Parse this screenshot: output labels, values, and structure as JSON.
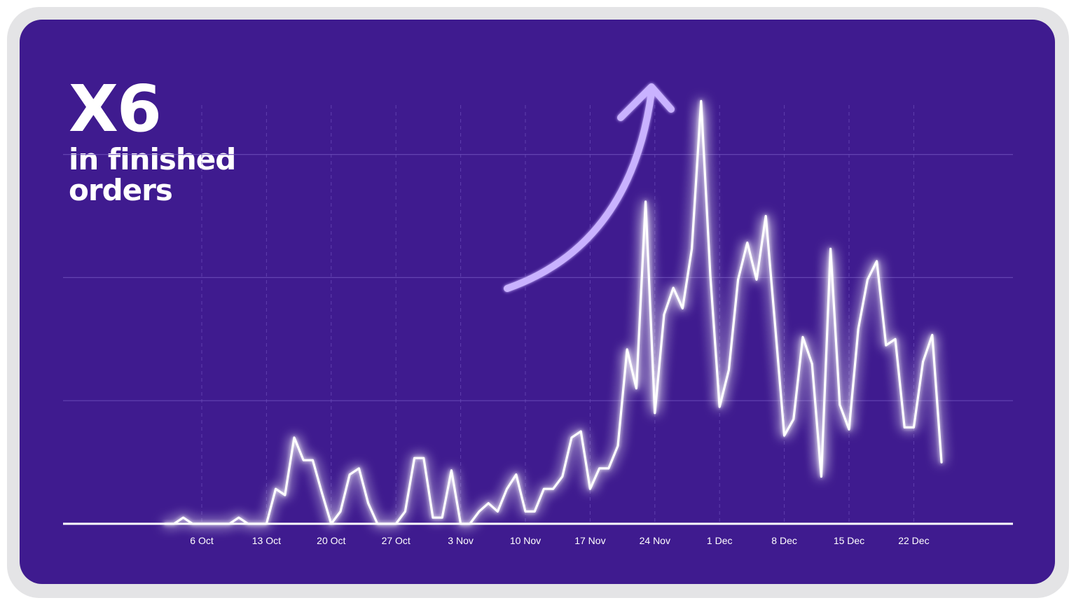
{
  "headline": {
    "multiplier": "X6",
    "caption": "in finished orders"
  },
  "colors": {
    "background": "#3f1b8f",
    "frame": "#e4e4e6",
    "line": "#ffffff",
    "glow": "#b9a3ff",
    "arrow": "#c9b2ff",
    "grid": "#6a4bb8"
  },
  "decorations": {
    "trend_arrow": "up-right-arrow-icon"
  },
  "chart_data": {
    "type": "line",
    "title": "",
    "xlabel": "",
    "ylabel": "",
    "x_tick_labels": [
      "6 Oct",
      "13 Oct",
      "20 Oct",
      "27 Oct",
      "3 Nov",
      "10 Nov",
      "17 Nov",
      "24 Nov",
      "1 Dec",
      "8 Dec",
      "15 Dec",
      "22 Dec"
    ],
    "x_range_days": [
      -3,
      85
    ],
    "ylim": [
      0,
      100
    ],
    "grid": "vertical dashed at ticks, horizontal solid",
    "horizontal_gridlines": [
      0,
      30,
      60,
      90
    ],
    "series": [
      {
        "values": [
          [
            -4,
            0
          ],
          [
            -3,
            0
          ],
          [
            -2,
            1.5
          ],
          [
            -1,
            0
          ],
          [
            0,
            0
          ],
          [
            1,
            0
          ],
          [
            2,
            0
          ],
          [
            3,
            0
          ],
          [
            4,
            1.5
          ],
          [
            5,
            0
          ],
          [
            6,
            0
          ],
          [
            7,
            0
          ],
          [
            8,
            8.5
          ],
          [
            9,
            7
          ],
          [
            10,
            21
          ],
          [
            11,
            15.5
          ],
          [
            12,
            15.5
          ],
          [
            13,
            7.5
          ],
          [
            14,
            0
          ],
          [
            15,
            3
          ],
          [
            16,
            12
          ],
          [
            17,
            13.5
          ],
          [
            18,
            5
          ],
          [
            19,
            0
          ],
          [
            20,
            0
          ],
          [
            21,
            0
          ],
          [
            22,
            3
          ],
          [
            23,
            16
          ],
          [
            24,
            16
          ],
          [
            25,
            1.5
          ],
          [
            26,
            1.5
          ],
          [
            27,
            13
          ],
          [
            28,
            0
          ],
          [
            29,
            0
          ],
          [
            30,
            3
          ],
          [
            31,
            5
          ],
          [
            32,
            3
          ],
          [
            33,
            8.5
          ],
          [
            34,
            12
          ],
          [
            35,
            3
          ],
          [
            36,
            3
          ],
          [
            37,
            8.5
          ],
          [
            38,
            8.5
          ],
          [
            39,
            11.5
          ],
          [
            40,
            21
          ],
          [
            41,
            22.5
          ],
          [
            42,
            8.5
          ],
          [
            43,
            13.5
          ],
          [
            44,
            13.5
          ],
          [
            45,
            19
          ],
          [
            46,
            42.5
          ],
          [
            47,
            33
          ],
          [
            48,
            78.5
          ],
          [
            49,
            27
          ],
          [
            50,
            51
          ],
          [
            51,
            57.5
          ],
          [
            52,
            52.5
          ],
          [
            53,
            67
          ],
          [
            54,
            103
          ],
          [
            55,
            60.5
          ],
          [
            56,
            28.5
          ],
          [
            57,
            37.5
          ],
          [
            58,
            59.5
          ],
          [
            59,
            68.5
          ],
          [
            60,
            59.5
          ],
          [
            61,
            75
          ],
          [
            62,
            48.5
          ],
          [
            63,
            21.5
          ],
          [
            64,
            25.5
          ],
          [
            65,
            45.5
          ],
          [
            66,
            39
          ],
          [
            67,
            11.5
          ],
          [
            68,
            67
          ],
          [
            69,
            29
          ],
          [
            70,
            23
          ],
          [
            71,
            47.5
          ],
          [
            72,
            59.5
          ],
          [
            73,
            64
          ],
          [
            74,
            43.5
          ],
          [
            75,
            45
          ],
          [
            76,
            23.5
          ],
          [
            77,
            23.5
          ],
          [
            78,
            39.5
          ],
          [
            79,
            46
          ],
          [
            80,
            15
          ]
        ]
      }
    ]
  }
}
